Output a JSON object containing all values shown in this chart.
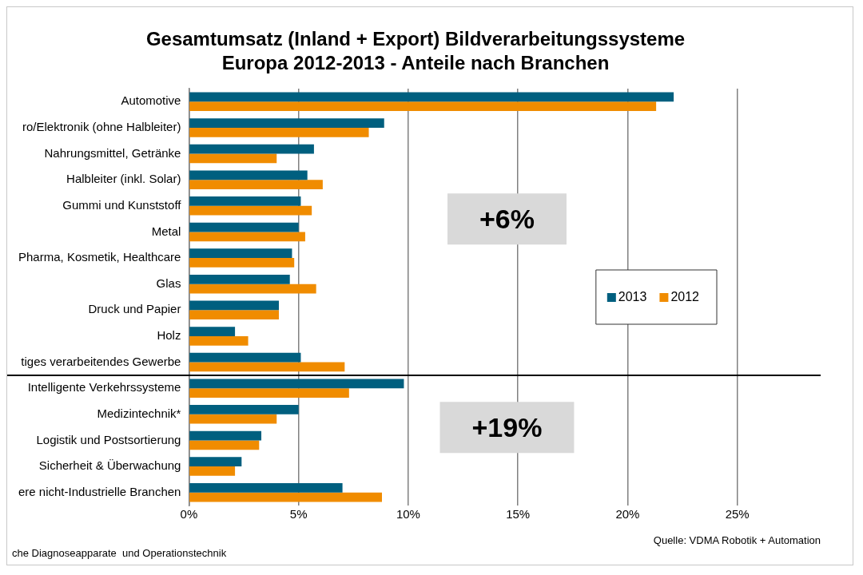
{
  "chart_data": {
    "type": "bar",
    "orientation": "horizontal",
    "title": "Gesamtumsatz (Inland + Export) Bildverarbeitungssysteme\nEuropa 2012-2013 - Anteile nach Branchen",
    "categories": [
      "Automotive",
      "ro/Elektronik (ohne Halbleiter)",
      "Nahrungsmittel, Getränke",
      "Halbleiter (inkl. Solar)",
      "Gummi und Kunststoff",
      "Metal",
      "Pharma, Kosmetik, Healthcare",
      "Glas",
      "Druck und Papier",
      "Holz",
      "tiges verarbeitendes Gewerbe",
      "Intelligente Verkehrssysteme",
      "Medizintechnik*",
      "Logistik und Postsortierung",
      "Sicherheit & Überwachung",
      "ere nicht-Industrielle Branchen"
    ],
    "series": [
      {
        "name": "2013",
        "color": "#005f7f",
        "values": [
          22.1,
          8.9,
          5.7,
          5.4,
          5.1,
          5.0,
          4.7,
          4.6,
          4.1,
          2.1,
          5.1,
          9.8,
          5.0,
          3.3,
          2.4,
          7.0
        ]
      },
      {
        "name": "2012",
        "color": "#f08c00",
        "values": [
          21.3,
          8.2,
          4.0,
          6.1,
          5.6,
          5.3,
          4.8,
          5.8,
          4.1,
          2.7,
          7.1,
          7.3,
          4.0,
          3.2,
          2.1,
          8.8
        ]
      }
    ],
    "xlim": [
      0,
      28.8
    ],
    "xticks": [
      {
        "value": 0,
        "label": "0%"
      },
      {
        "value": 5,
        "label": "5%"
      },
      {
        "value": 10,
        "label": "10%"
      },
      {
        "value": 15,
        "label": "15%"
      },
      {
        "value": 20,
        "label": "20%"
      },
      {
        "value": 25,
        "label": "25%"
      }
    ],
    "grid": "x",
    "legend": "right",
    "ref_lines": [
      {
        "axis": "y",
        "value": "tiges verarbeitendes Gewerbe",
        "color": "#000000"
      }
    ],
    "annotations": [
      "+6%",
      "+19%",
      "che Diagnoseapparate  und Operationstechnik",
      "Quelle: VDMA Robotik + Automation"
    ]
  }
}
